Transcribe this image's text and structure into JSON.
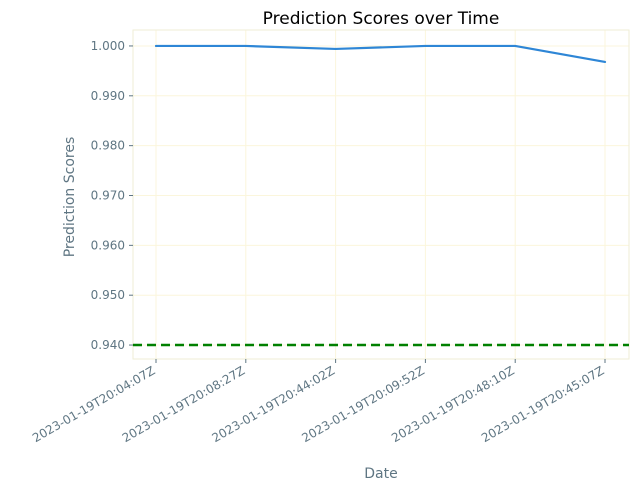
{
  "chart_data": {
    "type": "line",
    "title": "Prediction Scores over Time",
    "xlabel": "Date",
    "ylabel": "Prediction Scores",
    "categories": [
      "2023-01-19T20:04:07Z",
      "2023-01-19T20:08:27Z",
      "2023-01-19T20:44:02Z",
      "2023-01-19T20:09:52Z",
      "2023-01-19T20:48:10Z",
      "2023-01-19T20:45:07Z"
    ],
    "series": [
      {
        "values": [
          1.0,
          1.0,
          0.9994,
          1.0,
          1.0,
          0.9968
        ]
      }
    ],
    "threshold": 0.94,
    "yticks": [
      "0.940",
      "0.950",
      "0.960",
      "0.970",
      "0.980",
      "0.990",
      "1.000"
    ],
    "ylim": [
      0.9372,
      1.0032
    ],
    "grid": true,
    "colors": {
      "line": "#2e86d6",
      "threshold": "#008000",
      "grid": "#fbf6dc",
      "axis_text": "#5f7683",
      "spine": "#efeed6"
    }
  }
}
